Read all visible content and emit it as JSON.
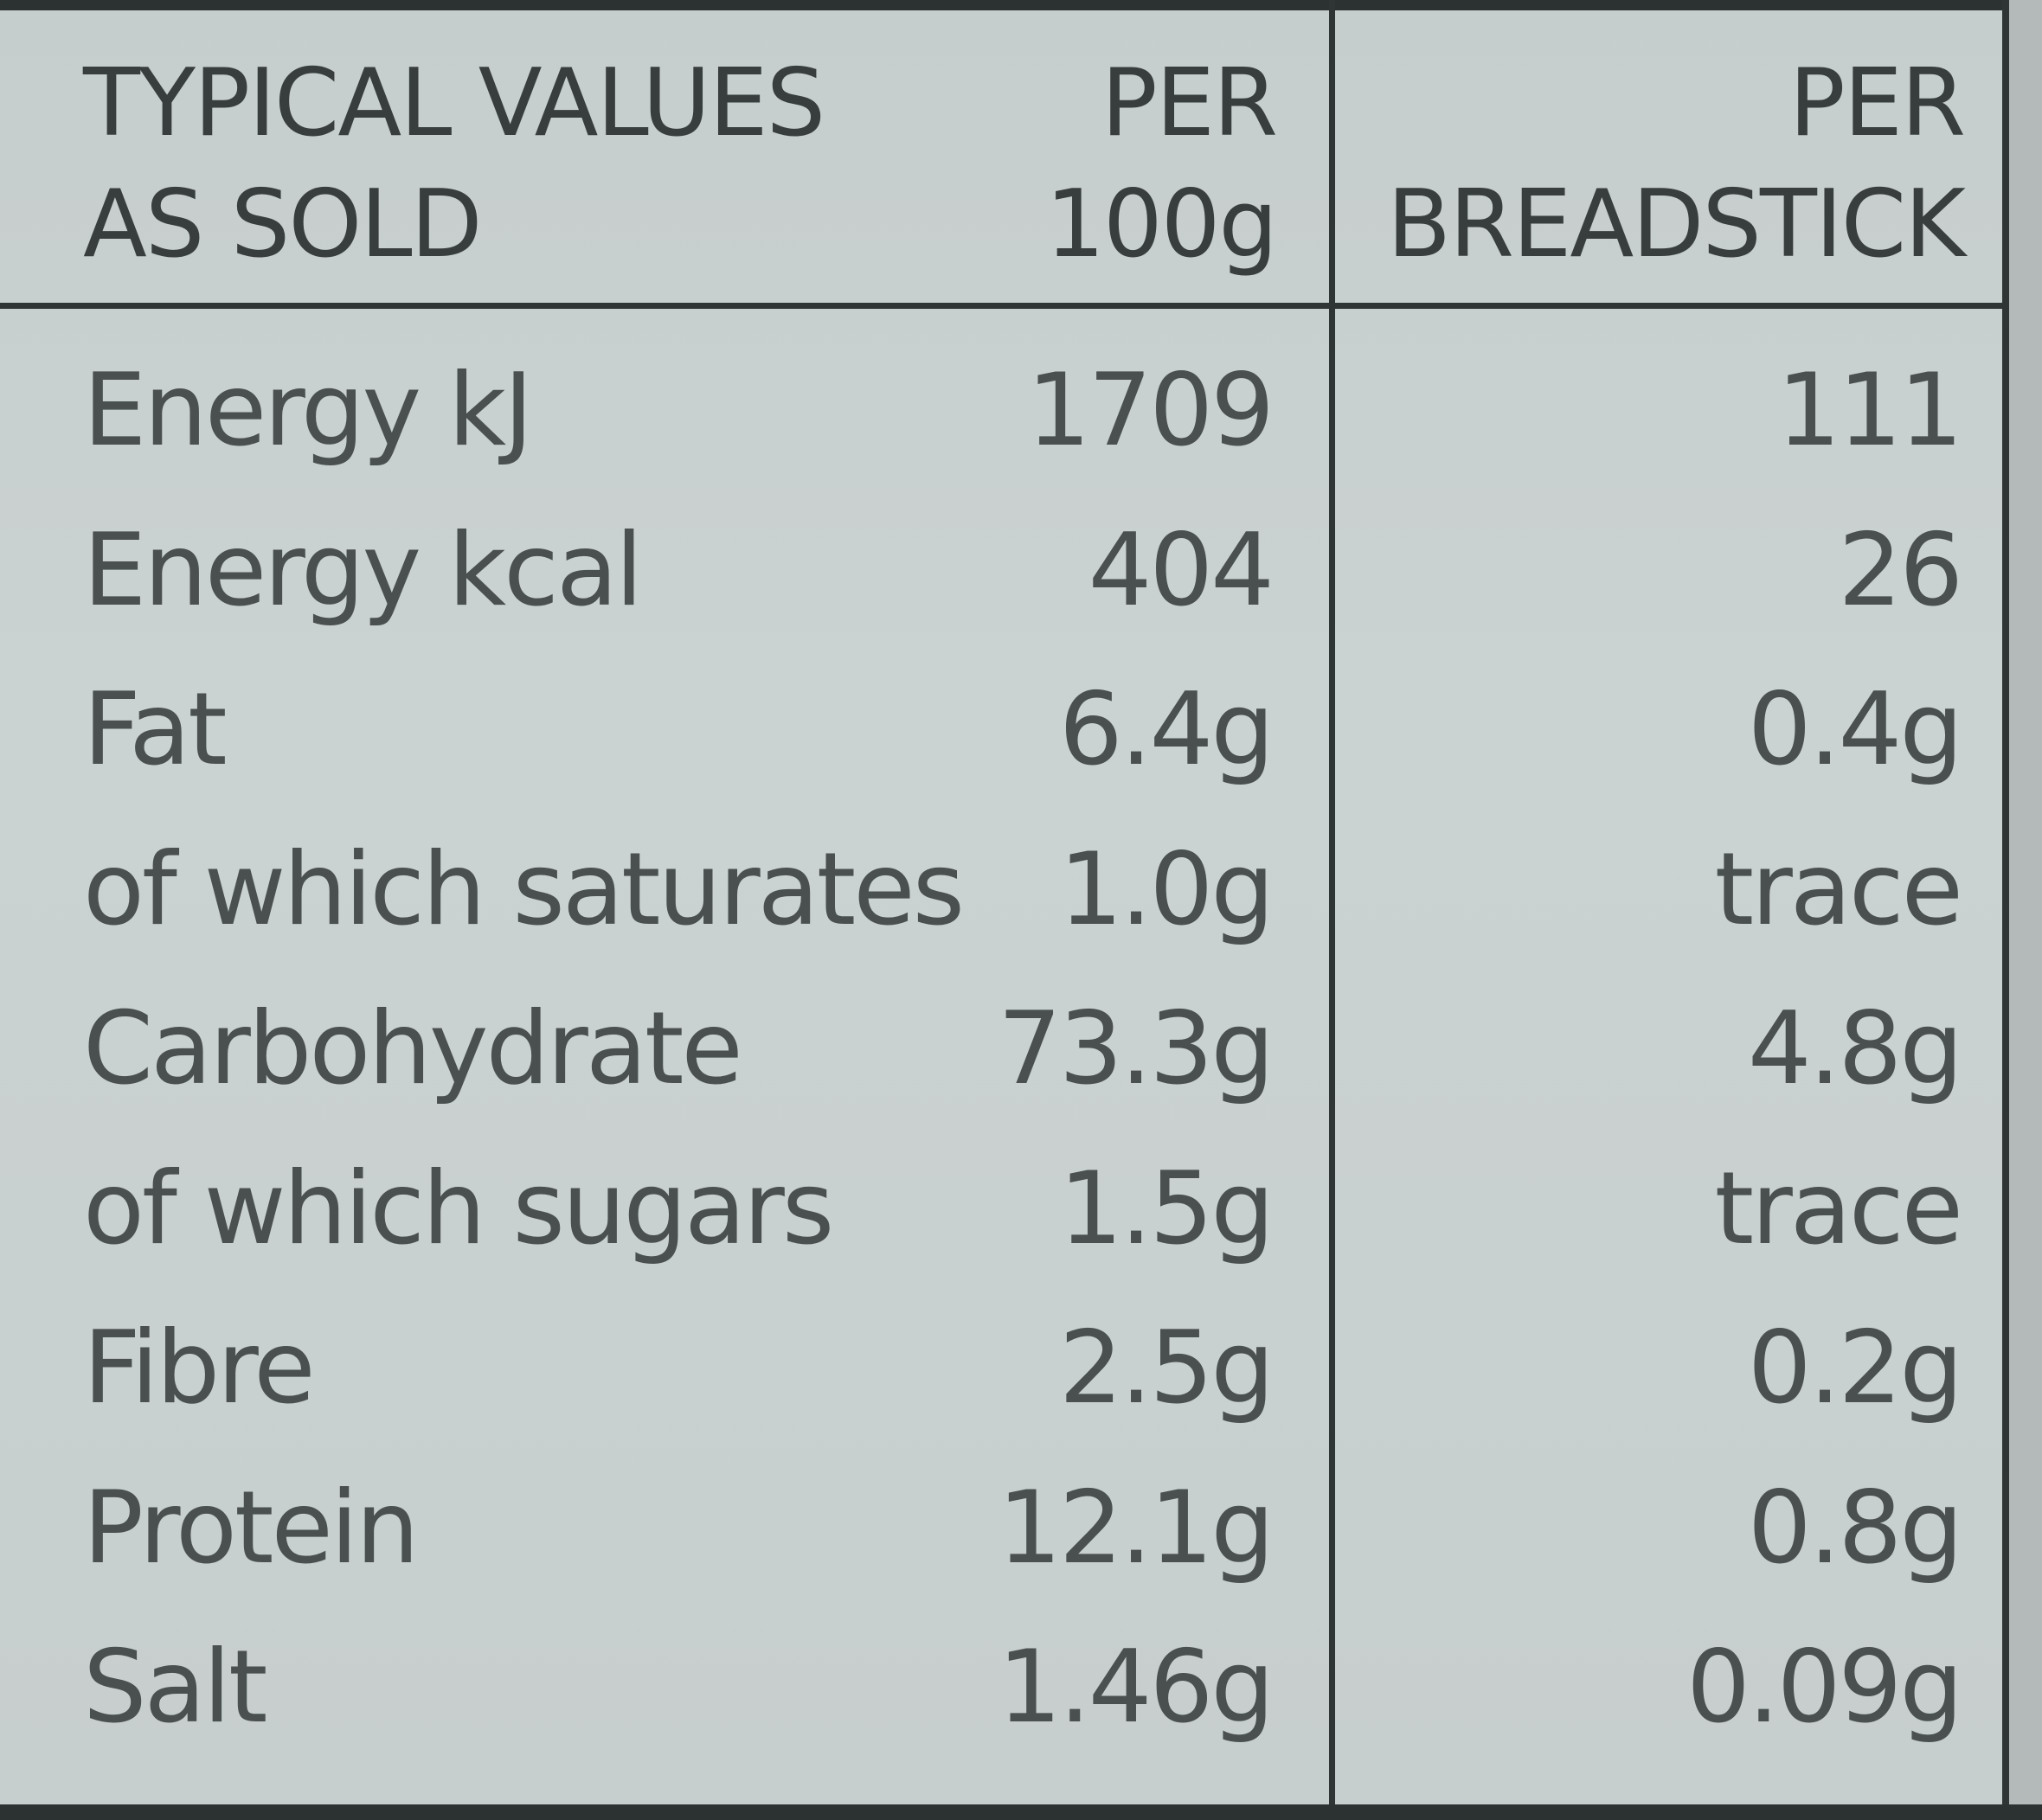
{
  "table": {
    "header": {
      "label_line1": "TYPICAL VALUES",
      "label_line2": "AS SOLD",
      "col1_line1": "PER",
      "col1_line2": "100g",
      "col2_line1": "PER",
      "col2_line2": "BREADSTICK"
    },
    "rows": [
      {
        "nutrient": "Energy kJ",
        "per_100g": "1709",
        "per_breadstick": "111"
      },
      {
        "nutrient": "Energy kcal",
        "per_100g": "404",
        "per_breadstick": "26"
      },
      {
        "nutrient": "Fat",
        "per_100g": "6.4g",
        "per_breadstick": "0.4g"
      },
      {
        "nutrient": "of which saturates",
        "per_100g": "1.0g",
        "per_breadstick": "trace"
      },
      {
        "nutrient": "Carbohydrate",
        "per_100g": "73.3g",
        "per_breadstick": "4.8g"
      },
      {
        "nutrient": "of which sugars",
        "per_100g": "1.5g",
        "per_breadstick": "trace"
      },
      {
        "nutrient": "Fibre",
        "per_100g": "2.5g",
        "per_breadstick": "0.2g"
      },
      {
        "nutrient": "Protein",
        "per_100g": "12.1g",
        "per_breadstick": "0.8g"
      },
      {
        "nutrient": "Salt",
        "per_100g": "1.46g",
        "per_breadstick": "0.09g"
      }
    ]
  }
}
